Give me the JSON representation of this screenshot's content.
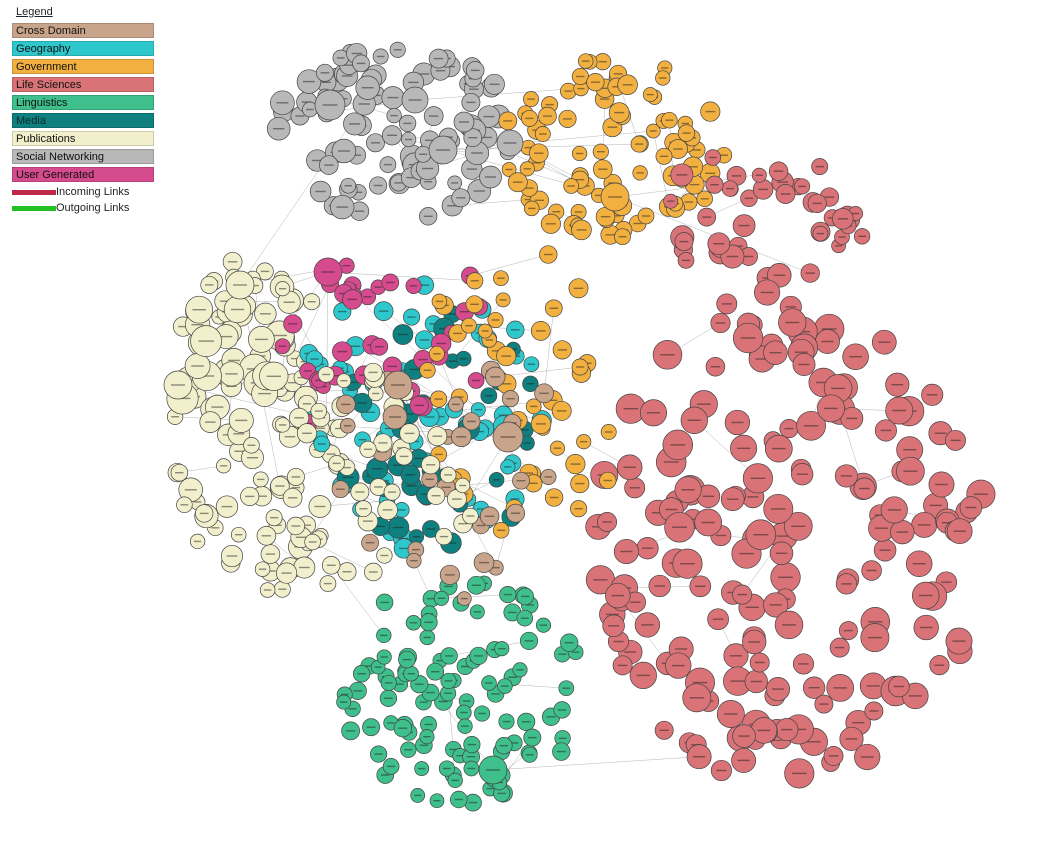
{
  "legend": {
    "title": "Legend",
    "categories": [
      {
        "label": "Cross Domain",
        "color": "#c8a48a"
      },
      {
        "label": "Geography",
        "color": "#2ec8cc"
      },
      {
        "label": "Government",
        "color": "#f2b040"
      },
      {
        "label": "Life Sciences",
        "color": "#d97377"
      },
      {
        "label": "Linguistics",
        "color": "#3ebf8c"
      },
      {
        "label": "Media",
        "color": "#0f8080"
      },
      {
        "label": "Publications",
        "color": "#f2f0cc"
      },
      {
        "label": "Social Networking",
        "color": "#b8b8b8"
      },
      {
        "label": "User Generated",
        "color": "#d64a8e"
      }
    ],
    "links": [
      {
        "label": "Incoming Links",
        "color": "#c0294a"
      },
      {
        "label": "Outgoing Links",
        "color": "#22c022"
      }
    ]
  }
}
